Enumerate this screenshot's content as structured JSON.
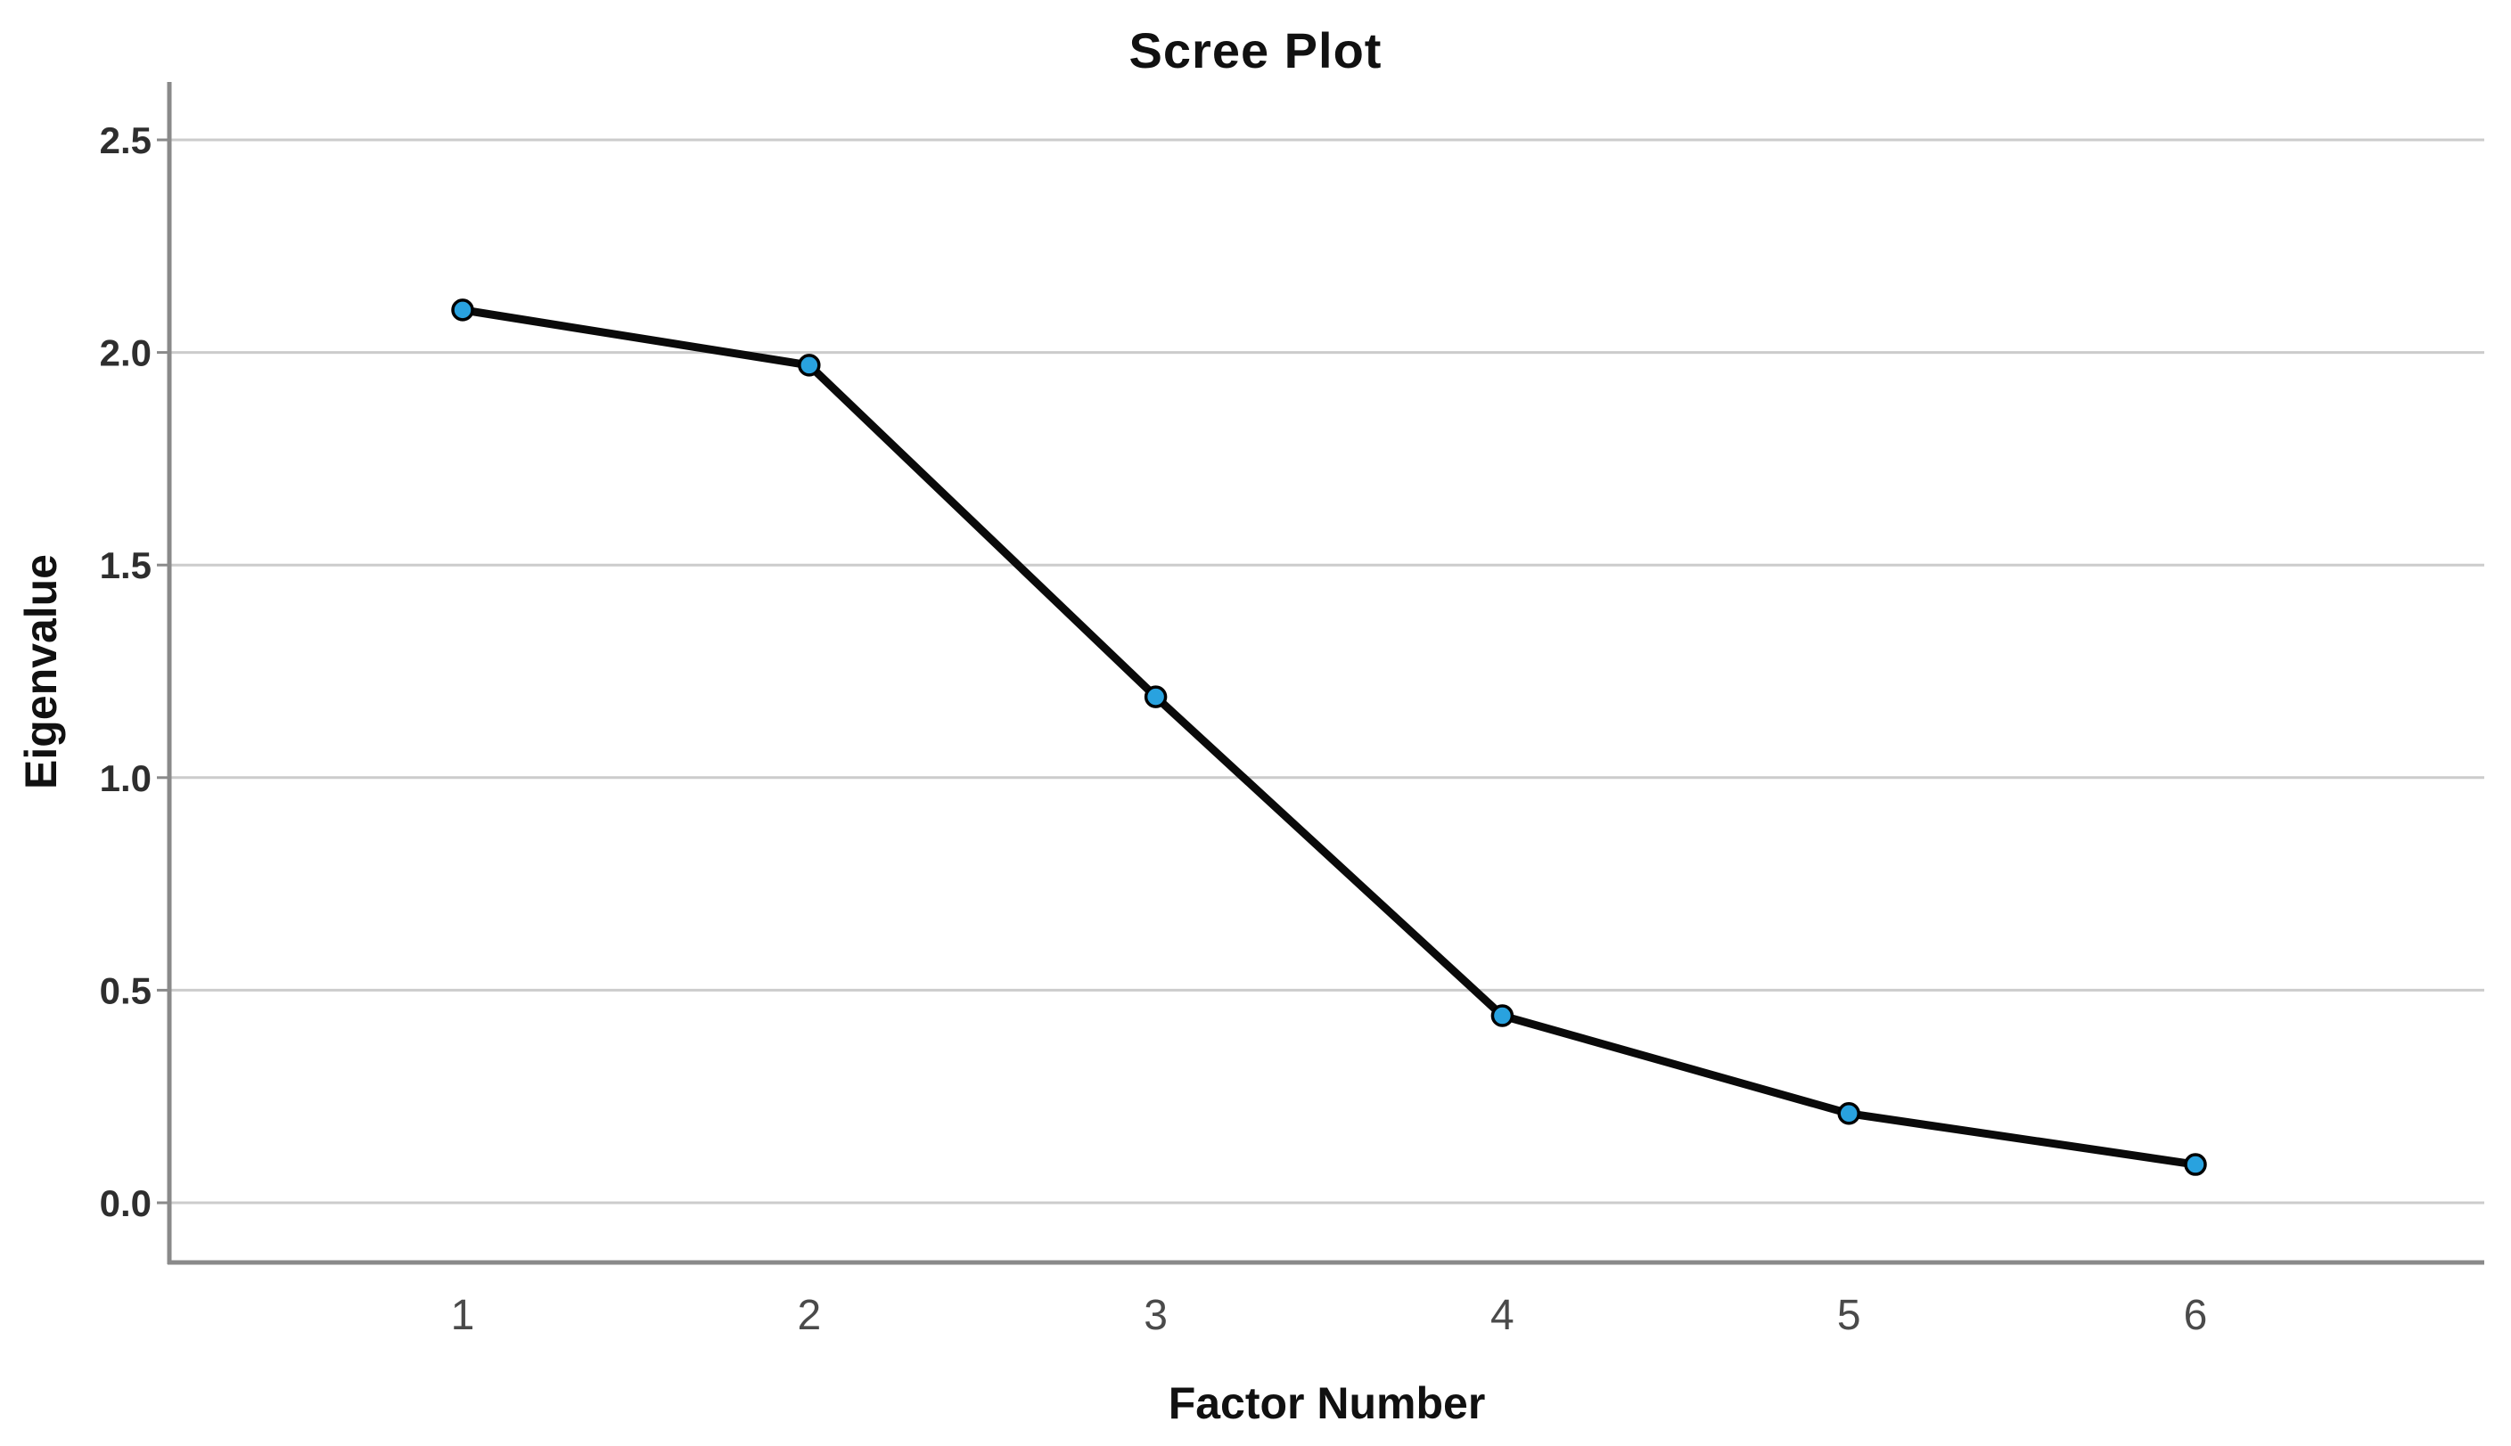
{
  "chart_data": {
    "type": "line",
    "title": "Scree Plot",
    "xlabel": "Factor Number",
    "ylabel": "Eigenvalue",
    "categories": [
      "1",
      "2",
      "3",
      "4",
      "5",
      "6"
    ],
    "x": [
      1,
      2,
      3,
      4,
      5,
      6
    ],
    "series": [
      {
        "name": "Eigenvalue",
        "values": [
          2.1,
          1.97,
          1.19,
          0.44,
          0.21,
          0.09
        ]
      }
    ],
    "ytick_labels": [
      "0.0",
      "0.5",
      "1.0",
      "1.5",
      "2.0",
      "2.5"
    ],
    "yticks": [
      0.0,
      0.5,
      1.0,
      1.5,
      2.0,
      2.5
    ],
    "ylim": [
      -0.14,
      2.64
    ],
    "grid": "horizontal",
    "legend": "none",
    "marker": "circle",
    "colors": {
      "line": "#0a0a0a",
      "marker_fill": "#29a2df",
      "marker_stroke": "#000000",
      "grid": "#cccccc",
      "axis": "#8a8a8a",
      "title_text": "#111111",
      "tick_text": "#2e2e2e",
      "background": "#ffffff"
    }
  }
}
